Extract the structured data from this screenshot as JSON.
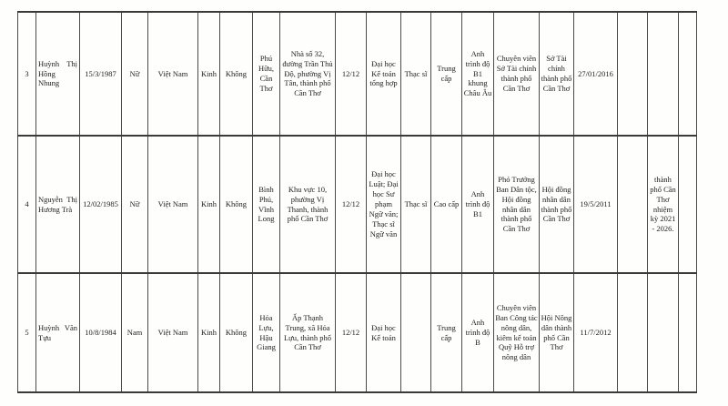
{
  "document_type": "scanned-personnel-table",
  "language": "vi",
  "colors": {
    "paper": "#fefefd",
    "ink": "#1d1d1d",
    "grid_line": "#4a4a4a"
  },
  "table": {
    "visible_header": false,
    "rows": [
      {
        "cells": [
          "3",
          "Huỳnh Thị Hồng Nhung",
          "15/3/1987",
          "Nữ",
          "Việt Nam",
          "Kinh",
          "Không",
          "Phú Hữu, Cần Thơ",
          "Nhà số 32, đường Trần Thủ Độ, phường Vị Tân, thành phố Cần Thơ",
          "12/12",
          "Đại học Kế toán tổng hợp",
          "Thạc sĩ",
          "Trung cấp",
          "Anh trình độ B1 khung Châu Âu",
          "Chuyên viên Sở Tài chính thành phố Cần Thơ",
          "Sở Tài chính thành phố Cần Thơ",
          "27/01/2016",
          "",
          "",
          ""
        ]
      },
      {
        "cells": [
          "4",
          "Nguyễn Thị Hương Trà",
          "12/02/1985",
          "Nữ",
          "Việt Nam",
          "Kinh",
          "Không",
          "Bình Phú, Vĩnh Long",
          "Khu vực 10, phường Vị Thanh, thành phố Cần Thơ",
          "12/12",
          "Đại học Luật; Đại học Sư phạm Ngữ văn; Thạc sĩ Ngữ văn",
          "Thạc sĩ",
          "Cao cấp",
          "Anh trình độ B1",
          "Phó Trưởng Ban Dân tộc, Hội đồng nhân dân thành phố Cần Thơ",
          "Hội đồng nhân dân thành phố Cần Thơ",
          "19/5/2011",
          "",
          "thành phố Cần Thơ nhiệm kỳ 2021 - 2026.",
          ""
        ]
      },
      {
        "cells": [
          "5",
          "Huỳnh Văn Tựu",
          "10/8/1984",
          "Nam",
          "Việt Nam",
          "Kinh",
          "Không",
          "Hỏa Lựu, Hậu Giang",
          "Ấp Thạnh Trung, xã Hỏa Lựu, thành phố Cần Thơ",
          "12/12",
          "Đại học Kế toán",
          "",
          "Trung cấp",
          "Anh trình độ B",
          "Chuyên viên Ban Công tác nông dân, kiêm kế toán Quỹ Hỗ trợ nông dân",
          "Hội Nông dân thành phố Cần Thơ",
          "11/7/2012",
          "",
          "",
          ""
        ]
      }
    ]
  }
}
